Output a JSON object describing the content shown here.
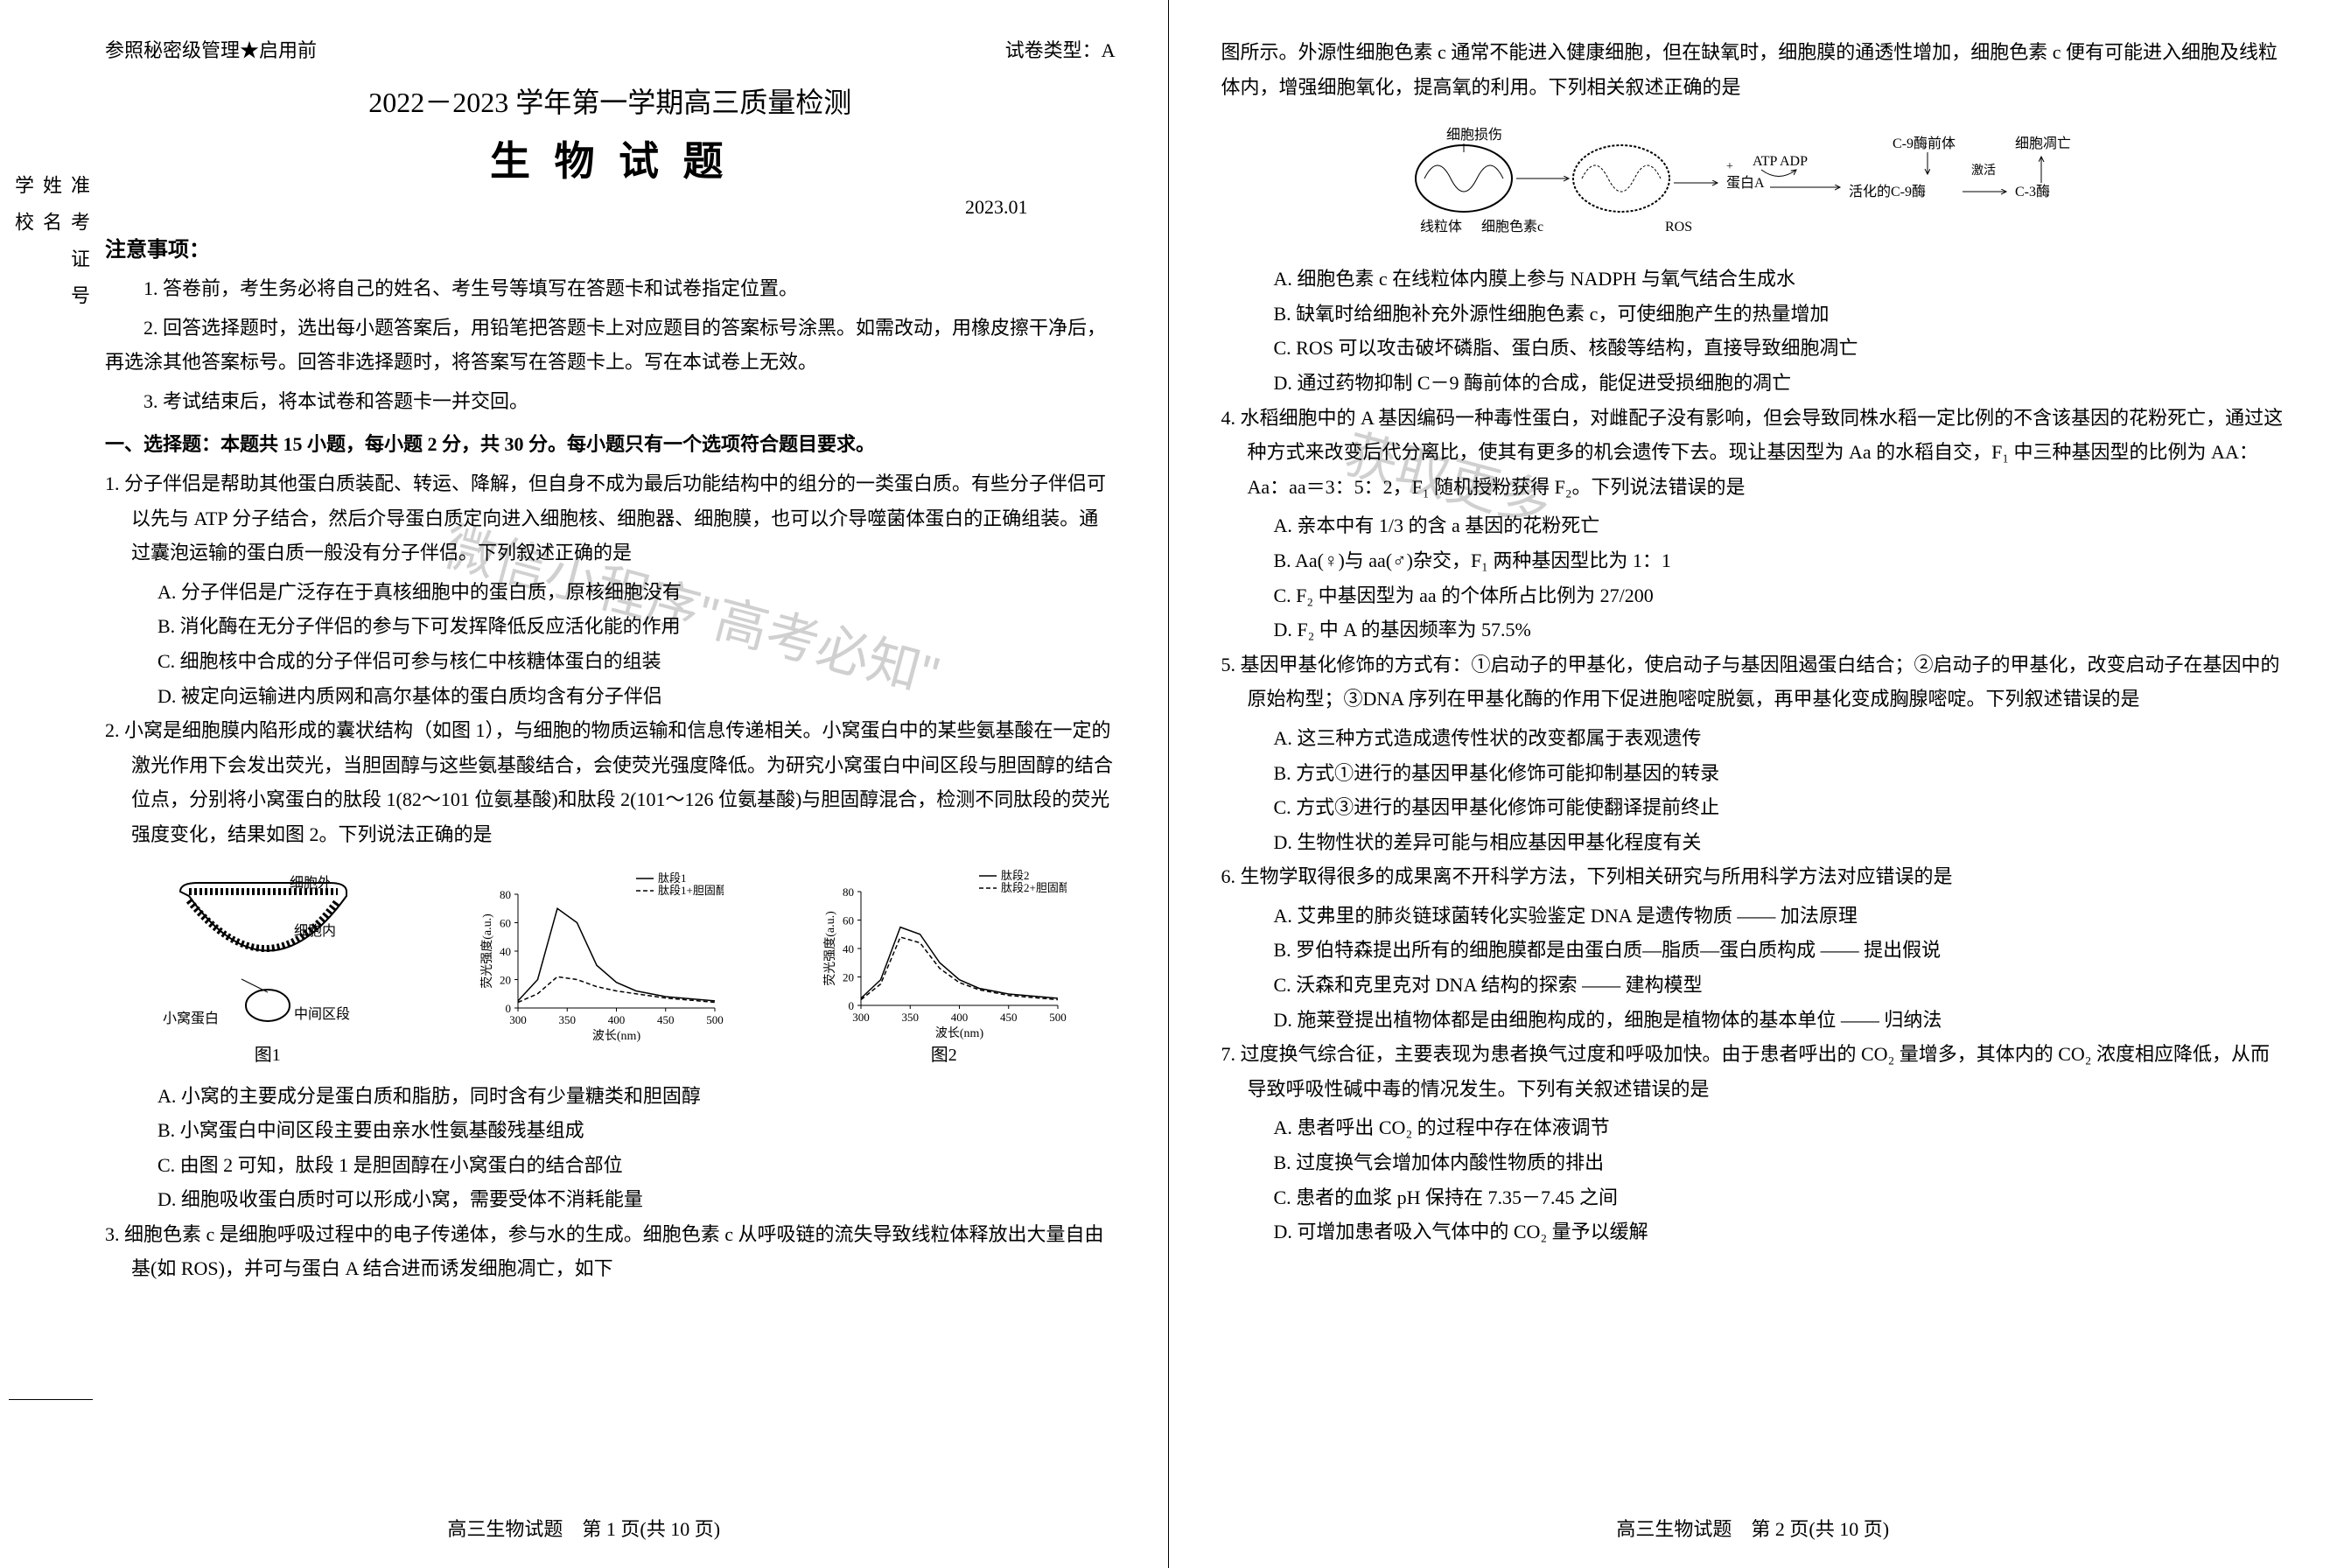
{
  "header": {
    "classification": "参照秘密级管理★启用前",
    "paper_type": "试卷类型：A"
  },
  "title": {
    "main": "2022－2023 学年第一学期高三质量检测",
    "subject": "生 物 试 题",
    "date": "2023.01"
  },
  "vertical_labels": {
    "exam_id": "准考证号",
    "name": "姓名",
    "school": "学校"
  },
  "notice": {
    "header": "注意事项：",
    "item1": "1. 答卷前，考生务必将自己的姓名、考生号等填写在答题卡和试卷指定位置。",
    "item2": "2. 回答选择题时，选出每小题答案后，用铅笔把答题卡上对应题目的答案标号涂黑。如需改动，用橡皮擦干净后，再选涂其他答案标号。回答非选择题时，将答案写在答题卡上。写在本试卷上无效。",
    "item3": "3. 考试结束后，将本试卷和答题卡一并交回。"
  },
  "section1": {
    "header": "一、选择题：本题共 15 小题，每小题 2 分，共 30 分。每小题只有一个选项符合题目要求。"
  },
  "q1": {
    "stem": "1. 分子伴侣是帮助其他蛋白质装配、转运、降解，但自身不成为最后功能结构中的组分的一类蛋白质。有些分子伴侣可以先与 ATP 分子结合，然后介导蛋白质定向进入细胞核、细胞器、细胞膜，也可以介导噬菌体蛋白的正确组装。通过囊泡运输的蛋白质一般没有分子伴侣。下列叙述正确的是",
    "a": "A. 分子伴侣是广泛存在于真核细胞中的蛋白质，原核细胞没有",
    "b": "B. 消化酶在无分子伴侣的参与下可发挥降低反应活化能的作用",
    "c": "C. 细胞核中合成的分子伴侣可参与核仁中核糖体蛋白的组装",
    "d": "D. 被定向运输进内质网和高尔基体的蛋白质均含有分子伴侣"
  },
  "q2": {
    "stem": "2. 小窝是细胞膜内陷形成的囊状结构（如图 1），与细胞的物质运输和信息传递相关。小窝蛋白中的某些氨基酸在一定的激光作用下会发出荧光，当胆固醇与这些氨基酸结合，会使荧光强度降低。为研究小窝蛋白中间区段与胆固醇的结合位点，分别将小窝蛋白的肽段 1(82～101 位氨基酸)和肽段 2(101～126 位氨基酸)与胆固醇混合，检测不同肽段的荧光强度变化，结果如图 2。下列说法正确的是",
    "a": "A. 小窝的主要成分是蛋白质和脂肪，同时含有少量糖类和胆固醇",
    "b": "B. 小窝蛋白中间区段主要由亲水性氨基酸残基组成",
    "c": "C. 由图 2 可知，肽段 1 是胆固醇在小窝蛋白的结合部位",
    "d": "D. 细胞吸收蛋白质时可以形成小窝，需要受体不消耗能量"
  },
  "q2_fig": {
    "fig1_label": "图1",
    "fig2_label": "图2",
    "fig1_labels": {
      "outside": "细胞外",
      "inside": "细胞内",
      "protein": "小窝蛋白",
      "middle": "中间区段"
    },
    "chart1": {
      "type": "line",
      "title_legend1": "肽段1",
      "title_legend2": "肽段1+胆固醇",
      "xlabel": "波长(nm)",
      "ylabel": "荧光强度(a.u.)",
      "ylim": [
        0,
        80
      ],
      "yticks": [
        0,
        20,
        40,
        60,
        80
      ],
      "xlim": [
        300,
        500
      ],
      "xticks": [
        300,
        350,
        400,
        450,
        500
      ],
      "line1_color": "#000000",
      "line2_color": "#000000",
      "line2_dash": "5,3",
      "background": "#ffffff",
      "series1": [
        [
          300,
          5
        ],
        [
          320,
          20
        ],
        [
          340,
          70
        ],
        [
          360,
          60
        ],
        [
          380,
          30
        ],
        [
          400,
          18
        ],
        [
          420,
          12
        ],
        [
          450,
          8
        ],
        [
          500,
          5
        ]
      ],
      "series2": [
        [
          300,
          4
        ],
        [
          320,
          10
        ],
        [
          340,
          22
        ],
        [
          360,
          20
        ],
        [
          380,
          15
        ],
        [
          400,
          12
        ],
        [
          420,
          10
        ],
        [
          450,
          7
        ],
        [
          500,
          4
        ]
      ]
    },
    "chart2": {
      "type": "line",
      "title_legend1": "肽段2",
      "title_legend2": "肽段2+胆固醇",
      "xlabel": "波长(nm)",
      "ylabel": "荧光强度(a.u.)",
      "ylim": [
        0,
        80
      ],
      "yticks": [
        0,
        20,
        40,
        60,
        80
      ],
      "xlim": [
        300,
        500
      ],
      "xticks": [
        300,
        350,
        400,
        450,
        500
      ],
      "line1_color": "#000000",
      "line2_color": "#000000",
      "line2_dash": "5,3",
      "background": "#ffffff",
      "series1": [
        [
          300,
          5
        ],
        [
          320,
          18
        ],
        [
          340,
          55
        ],
        [
          360,
          50
        ],
        [
          380,
          30
        ],
        [
          400,
          18
        ],
        [
          420,
          12
        ],
        [
          450,
          8
        ],
        [
          500,
          5
        ]
      ],
      "series2": [
        [
          300,
          4
        ],
        [
          320,
          15
        ],
        [
          340,
          48
        ],
        [
          360,
          44
        ],
        [
          380,
          26
        ],
        [
          400,
          16
        ],
        [
          420,
          11
        ],
        [
          450,
          7
        ],
        [
          500,
          4
        ]
      ]
    }
  },
  "q3": {
    "stem": "3. 细胞色素 c 是细胞呼吸过程中的电子传递体，参与水的生成。细胞色素 c 从呼吸链的流失导致线粒体释放出大量自由基(如 ROS)，并可与蛋白 A 结合进而诱发细胞凋亡，如下",
    "stem2": "图所示。外源性细胞色素 c 通常不能进入健康细胞，但在缺氧时，细胞膜的通透性增加，细胞色素 c 便有可能进入细胞及线粒体内，增强细胞氧化，提高氧的利用。下列相关叙述正确的是",
    "diagram_labels": {
      "damage": "细胞损伤",
      "mito": "线粒体",
      "cytc": "细胞色素c",
      "ros": "ROS",
      "proteinA": "蛋白A",
      "atp": "ATP",
      "adp": "ADP",
      "c9pre": "C-9酶前体",
      "active_c9": "活化的C-9酶",
      "apoptosis": "细胞凋亡",
      "activate": "激活",
      "c3": "C-3酶"
    },
    "a": "A. 细胞色素 c 在线粒体内膜上参与 NADPH 与氧气结合生成水",
    "b": "B. 缺氧时给细胞补充外源性细胞色素 c，可使细胞产生的热量增加",
    "c": "C. ROS 可以攻击破坏磷脂、蛋白质、核酸等结构，直接导致细胞凋亡",
    "d": "D. 通过药物抑制 C－9 酶前体的合成，能促进受损细胞的凋亡"
  },
  "q4": {
    "stem": "4. 水稻细胞中的 A 基因编码一种毒性蛋白，对雌配子没有影响，但会导致同株水稻一定比例的不含该基因的花粉死亡，通过这种方式来改变后代分离比，使其有更多的机会遗传下去。现让基因型为 Aa 的水稻自交，F₁ 中三种基因型的比例为 AA：Aa：aa＝3：5：2，F₁ 随机授粉获得 F₂。下列说法错误的是",
    "a": "A. 亲本中有 1/3 的含 a 基因的花粉死亡",
    "b": "B. Aa(♀)与 aa(♂)杂交，F₁ 两种基因型比为 1：1",
    "c": "C. F₂ 中基因型为 aa 的个体所占比例为 27/200",
    "d": "D. F₂ 中 A 的基因频率为 57.5%"
  },
  "q5": {
    "stem": "5. 基因甲基化修饰的方式有：①启动子的甲基化，使启动子与基因阻遏蛋白结合；②启动子的甲基化，改变启动子在基因中的原始构型；③DNA 序列在甲基化酶的作用下促进胞嘧啶脱氨，再甲基化变成胸腺嘧啶。下列叙述错误的是",
    "a": "A. 这三种方式造成遗传性状的改变都属于表观遗传",
    "b": "B. 方式①进行的基因甲基化修饰可能抑制基因的转录",
    "c": "C. 方式③进行的基因甲基化修饰可能使翻译提前终止",
    "d": "D. 生物性状的差异可能与相应基因甲基化程度有关"
  },
  "q6": {
    "stem": "6. 生物学取得很多的成果离不开科学方法，下列相关研究与所用科学方法对应错误的是",
    "a": "A. 艾弗里的肺炎链球菌转化实验鉴定 DNA 是遗传物质 —— 加法原理",
    "b": "B. 罗伯特森提出所有的细胞膜都是由蛋白质—脂质—蛋白质构成 —— 提出假说",
    "c": "C. 沃森和克里克对 DNA 结构的探索 —— 建构模型",
    "d": "D. 施莱登提出植物体都是由细胞构成的，细胞是植物体的基本单位 —— 归纳法"
  },
  "q7": {
    "stem": "7. 过度换气综合征，主要表现为患者换气过度和呼吸加快。由于患者呼出的 CO₂ 量增多，其体内的 CO₂ 浓度相应降低，从而导致呼吸性碱中毒的情况发生。下列有关叙述错误的是",
    "a": "A. 患者呼出 CO₂ 的过程中存在体液调节",
    "b": "B. 过度换气会增加体内酸性物质的排出",
    "c": "C. 患者的血浆 pH 保持在 7.35－7.45 之间",
    "d": "D. 可增加患者吸入气体中的 CO₂ 量予以缓解"
  },
  "footer": {
    "page1": "高三生物试题　第 1 页(共 10 页)",
    "page2": "高三生物试题　第 2 页(共 10 页)"
  },
  "watermark": {
    "text1": "微信小程序\"高考必知\"",
    "text2": "获取更多"
  }
}
